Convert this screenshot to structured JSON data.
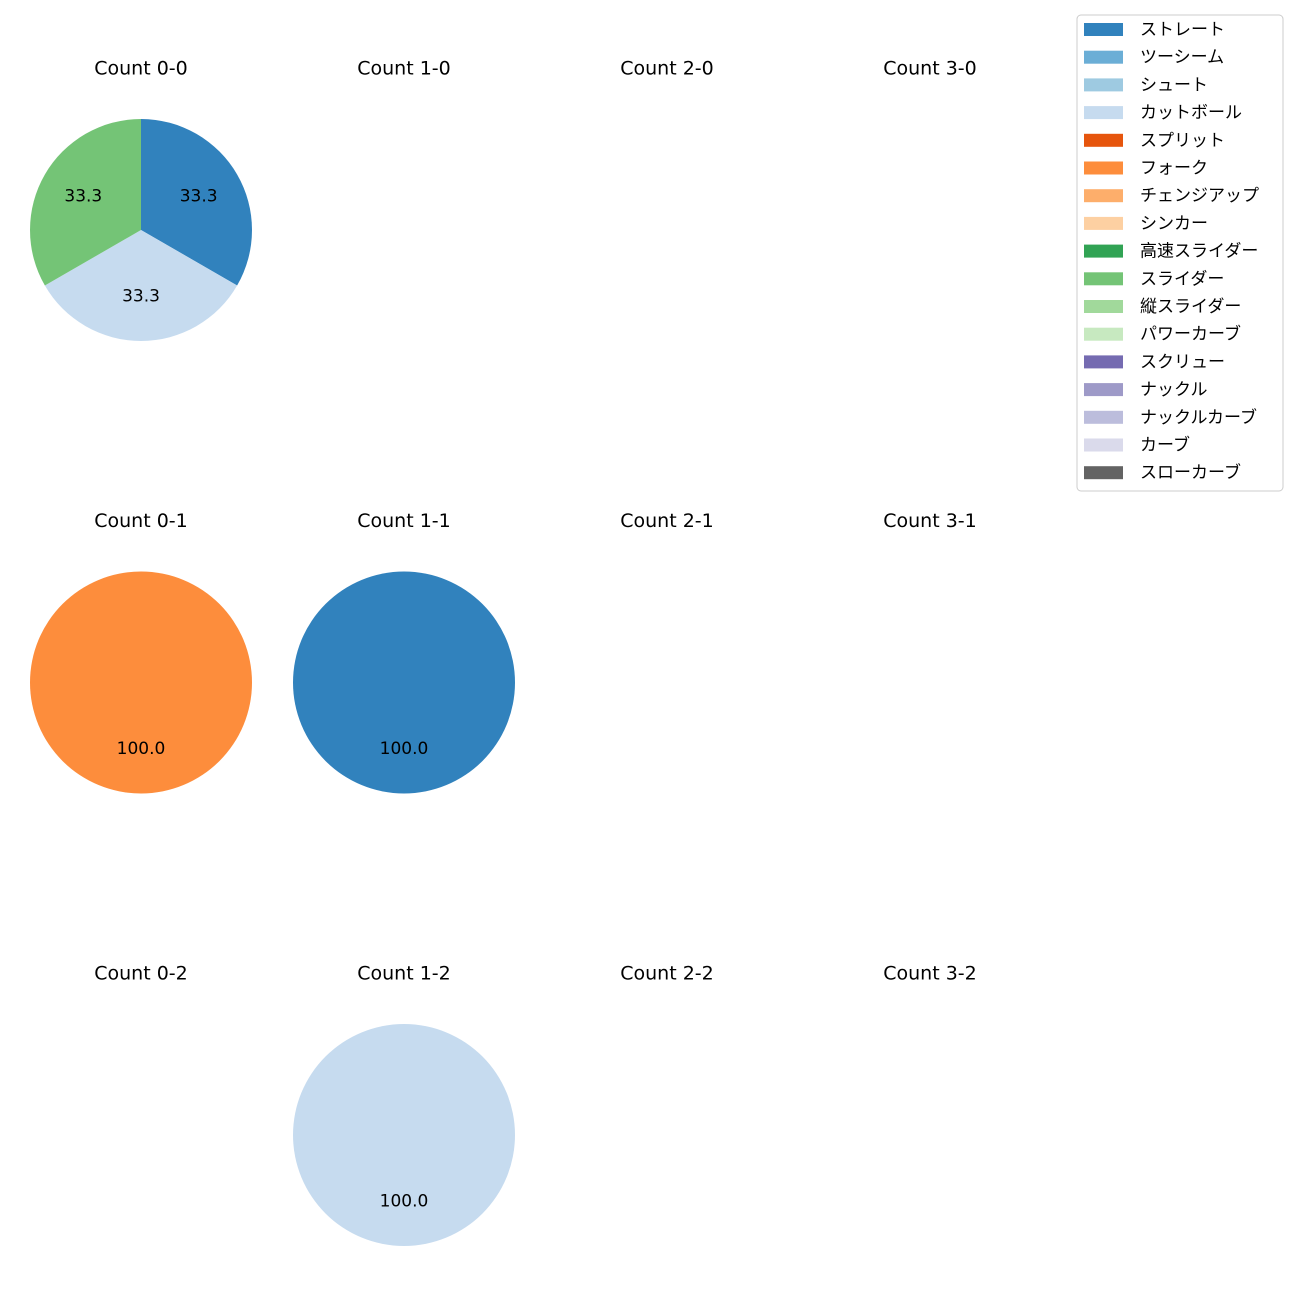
{
  "chart_data": [
    {
      "type": "pie",
      "title": "Count 0-0",
      "categories": [
        "ストレート",
        "カットボール",
        "スライダー"
      ],
      "values": [
        33.3,
        33.3,
        33.3
      ]
    },
    {
      "type": "pie",
      "title": "Count 1-0"
    },
    {
      "type": "pie",
      "title": "Count 2-0"
    },
    {
      "type": "pie",
      "title": "Count 3-0"
    },
    {
      "type": "pie",
      "title": "Count 0-1",
      "categories": [
        "フォーク"
      ],
      "values": [
        100
      ],
      "value_labels": [
        "100.0"
      ]
    },
    {
      "type": "pie",
      "title": "Count 1-1",
      "categories": [
        "ストレート"
      ],
      "values": [
        100
      ],
      "value_labels": [
        "100.0"
      ]
    },
    {
      "type": "pie",
      "title": "Count 2-1"
    },
    {
      "type": "pie",
      "title": "Count 3-1"
    },
    {
      "type": "pie",
      "title": "Count 0-2"
    },
    {
      "type": "pie",
      "title": "Count 1-2",
      "categories": [
        "カットボール"
      ],
      "values": [
        100
      ],
      "value_labels": [
        "100.0"
      ]
    },
    {
      "type": "pie",
      "title": "Count 2-2"
    },
    {
      "type": "pie",
      "title": "Count 3-2"
    }
  ],
  "legend": {
    "names": [
      "ストレート",
      "ツーシーム",
      "シュート",
      "カットボール",
      "スプリット",
      "フォーク",
      "チェンジアップ",
      "シンカー",
      "高速スライダー",
      "スライダー",
      "縦スライダー",
      "パワーカーブ",
      "スクリュー",
      "ナックル",
      "ナックルカーブ",
      "カーブ",
      "スローカーブ"
    ],
    "colors": [
      "#3182bd",
      "#6baed6",
      "#9ecae1",
      "#c6dbef",
      "#e6550d",
      "#fd8d3c",
      "#fdae6b",
      "#fdd0a2",
      "#31a354",
      "#74c476",
      "#a1d99b",
      "#c7e9c0",
      "#756bb1",
      "#9e9ac8",
      "#bcbddc",
      "#dadaeb",
      "#636363"
    ]
  }
}
